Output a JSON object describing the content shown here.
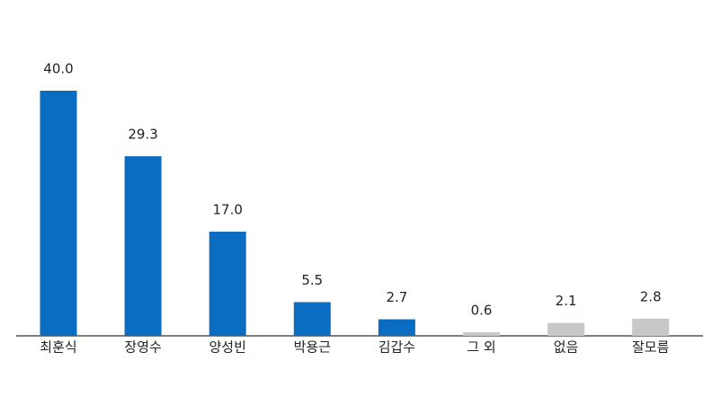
{
  "chart_data": {
    "type": "bar",
    "categories": [
      "최훈식",
      "장영수",
      "양성빈",
      "박용근",
      "김갑수",
      "그 외",
      "없음",
      "잘모름"
    ],
    "values": [
      40,
      29.3,
      17,
      5.5,
      2.7,
      0.6,
      2.1,
      2.8
    ],
    "value_labels": [
      "40.0",
      "29.3",
      "17.0",
      "5.5",
      "2.7",
      "0.6",
      "2.1",
      "2.8"
    ],
    "colors": [
      "#0b6dc1",
      "#0b6dc1",
      "#0b6dc1",
      "#0b6dc1",
      "#0b6dc1",
      "#c8c8c8",
      "#c8c8c8",
      "#c8c8c8"
    ]
  }
}
